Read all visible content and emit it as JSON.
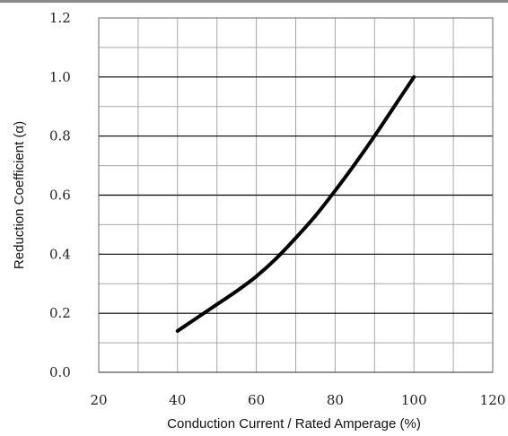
{
  "chart_data": {
    "type": "line",
    "title": "",
    "xlabel": "Conduction Current / Rated Amperage (%)",
    "ylabel": "Reduction Coefficient (α)",
    "xlim": [
      20,
      120
    ],
    "ylim": [
      0.0,
      1.2
    ],
    "x_ticks": [
      "20",
      "40",
      "60",
      "80",
      "100",
      "120"
    ],
    "y_ticks": [
      "0.0",
      "0.2",
      "0.4",
      "0.6",
      "0.8",
      "1.0",
      "1.2"
    ],
    "grid": true,
    "legend": false,
    "series": [
      {
        "x": [
          40,
          45,
          50,
          55,
          60,
          65,
          70,
          75,
          80,
          85,
          90,
          95,
          100
        ],
        "y": [
          0.14,
          0.185,
          0.23,
          0.275,
          0.325,
          0.385,
          0.455,
          0.53,
          0.615,
          0.705,
          0.8,
          0.9,
          1.0
        ],
        "color": "#000000"
      }
    ]
  }
}
